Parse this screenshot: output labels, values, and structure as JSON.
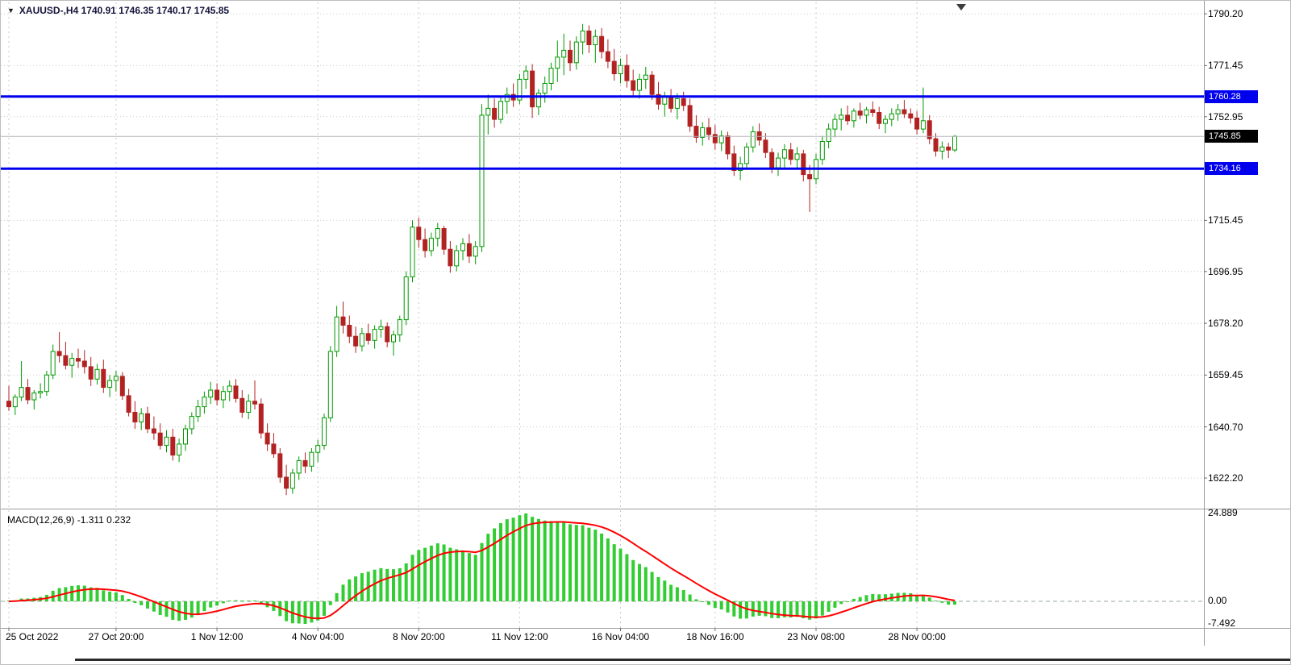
{
  "header": {
    "quick_menu_icon": "▼",
    "symbol_line": "XAUUSD-,H4  1740.91 1746.35 1740.17 1745.85"
  },
  "chart_data": {
    "type": "candlestick",
    "symbol": "XAUUSD-",
    "timeframe": "H4",
    "current_bar": {
      "open": 1740.91,
      "high": 1746.35,
      "low": 1740.17,
      "close": 1745.85
    },
    "price_axis": [
      {
        "price": 1790.2,
        "text": "1790.20"
      },
      {
        "price": 1771.45,
        "text": "1771.45"
      },
      {
        "price": 1752.95,
        "text": "1752.95"
      },
      {
        "price": 1715.45,
        "text": "1715.45"
      },
      {
        "price": 1696.95,
        "text": "1696.95"
      },
      {
        "price": 1678.2,
        "text": "1678.20"
      },
      {
        "price": 1659.45,
        "text": "1659.45"
      },
      {
        "price": 1640.7,
        "text": "1640.70"
      },
      {
        "price": 1622.2,
        "text": "1622.20"
      }
    ],
    "hlines": [
      {
        "price": 1760.28,
        "text": "1760.28"
      },
      {
        "price": 1734.16,
        "text": "1734.16"
      }
    ],
    "bid": {
      "price": 1745.85,
      "text": "1745.85"
    },
    "x_labels": [
      {
        "bar": 0,
        "text": "25 Oct 2022"
      },
      {
        "bar": 17,
        "text": "27 Oct 20:00"
      },
      {
        "bar": 33,
        "text": "1 Nov 12:00"
      },
      {
        "bar": 49,
        "text": "4 Nov 04:00"
      },
      {
        "bar": 65,
        "text": "8 Nov 20:00"
      },
      {
        "bar": 81,
        "text": "11 Nov 12:00"
      },
      {
        "bar": 97,
        "text": "16 Nov 04:00"
      },
      {
        "bar": 112,
        "text": "18 Nov 16:00"
      },
      {
        "bar": 128,
        "text": "23 Nov 08:00"
      },
      {
        "bar": 144,
        "text": "28 Nov 00:00"
      }
    ],
    "candles": [
      [
        1650,
        1655.5,
        1646.5,
        1648
      ],
      [
        1648,
        1652.5,
        1645,
        1651.5
      ],
      [
        1651.5,
        1664.5,
        1650,
        1655
      ],
      [
        1655,
        1658,
        1649,
        1650.5
      ],
      [
        1650.5,
        1654,
        1647,
        1653
      ],
      [
        1653,
        1656.5,
        1651,
        1653.5
      ],
      [
        1653.5,
        1661,
        1652,
        1659.5
      ],
      [
        1659.5,
        1670.5,
        1658,
        1668
      ],
      [
        1668,
        1675,
        1664,
        1666.5
      ],
      [
        1666.5,
        1671.5,
        1661.5,
        1663
      ],
      [
        1663,
        1667.5,
        1658.5,
        1665.5
      ],
      [
        1665.5,
        1669,
        1662,
        1664.5
      ],
      [
        1664.5,
        1668.5,
        1660,
        1662.5
      ],
      [
        1662.5,
        1666,
        1655.5,
        1658
      ],
      [
        1658,
        1663.5,
        1656,
        1661.5
      ],
      [
        1661.5,
        1665,
        1653,
        1655
      ],
      [
        1655,
        1659.5,
        1651.5,
        1657.5
      ],
      [
        1657.5,
        1661,
        1653.5,
        1659
      ],
      [
        1659,
        1660.5,
        1650.5,
        1652
      ],
      [
        1652,
        1654.5,
        1644.5,
        1646
      ],
      [
        1646,
        1650,
        1640,
        1642.5
      ],
      [
        1642.5,
        1647.5,
        1639.5,
        1645.5
      ],
      [
        1645.5,
        1648,
        1638.5,
        1640
      ],
      [
        1640,
        1644.5,
        1636,
        1638.5
      ],
      [
        1638.5,
        1642,
        1632.5,
        1634
      ],
      [
        1634,
        1639.5,
        1631.5,
        1637
      ],
      [
        1637,
        1640,
        1628.5,
        1630.5
      ],
      [
        1630.5,
        1636.5,
        1628,
        1634.5
      ],
      [
        1634.5,
        1641.5,
        1632,
        1640
      ],
      [
        1640,
        1646,
        1638,
        1644.5
      ],
      [
        1644.5,
        1650.5,
        1642.5,
        1648
      ],
      [
        1648,
        1653.5,
        1645.5,
        1651.5
      ],
      [
        1651.5,
        1657,
        1649,
        1654
      ],
      [
        1654,
        1656.5,
        1648.5,
        1650.5
      ],
      [
        1650.5,
        1655.5,
        1647.5,
        1653.5
      ],
      [
        1653.5,
        1657.5,
        1650,
        1655.5
      ],
      [
        1655.5,
        1658,
        1649.5,
        1651
      ],
      [
        1651,
        1654,
        1644,
        1646
      ],
      [
        1646,
        1652.5,
        1643.5,
        1650
      ],
      [
        1650,
        1657.5,
        1647,
        1649
      ],
      [
        1649,
        1651,
        1636.5,
        1638.5
      ],
      [
        1638.5,
        1642,
        1632,
        1634.5
      ],
      [
        1634.5,
        1638.5,
        1629.5,
        1631
      ],
      [
        1631,
        1633,
        1620.5,
        1622.5
      ],
      [
        1622.5,
        1627,
        1616,
        1618.5
      ],
      [
        1618.5,
        1625.5,
        1616.5,
        1624
      ],
      [
        1624,
        1630,
        1621.5,
        1628.5
      ],
      [
        1628.5,
        1631.5,
        1624,
        1626.5
      ],
      [
        1626.5,
        1633,
        1624.5,
        1631.5
      ],
      [
        1631.5,
        1636,
        1628,
        1634
      ],
      [
        1634,
        1645.5,
        1632.5,
        1644
      ],
      [
        1644,
        1670,
        1642.5,
        1668
      ],
      [
        1668,
        1684.5,
        1666,
        1680.5
      ],
      [
        1680.5,
        1686,
        1674.5,
        1677.5
      ],
      [
        1677.5,
        1681,
        1671,
        1673.5
      ],
      [
        1673.5,
        1677,
        1667.5,
        1670
      ],
      [
        1670,
        1676.5,
        1668,
        1674.5
      ],
      [
        1674.5,
        1678,
        1670.5,
        1672
      ],
      [
        1672,
        1677.5,
        1669,
        1676
      ],
      [
        1676,
        1679.5,
        1673,
        1677
      ],
      [
        1677,
        1678.5,
        1669.5,
        1671.5
      ],
      [
        1671.5,
        1675.5,
        1666.5,
        1674
      ],
      [
        1674,
        1681,
        1671.5,
        1679.5
      ],
      [
        1679.5,
        1697,
        1677.5,
        1695
      ],
      [
        1695,
        1715.5,
        1693,
        1713
      ],
      [
        1713,
        1716.5,
        1705.5,
        1708.5
      ],
      [
        1708.5,
        1712.5,
        1702,
        1704.5
      ],
      [
        1704.5,
        1711,
        1702.5,
        1709
      ],
      [
        1709,
        1714.5,
        1706,
        1712.5
      ],
      [
        1712.5,
        1713.5,
        1703,
        1705
      ],
      [
        1705,
        1708,
        1696.5,
        1699
      ],
      [
        1699,
        1706.5,
        1697,
        1704.5
      ],
      [
        1704.5,
        1709,
        1701,
        1707
      ],
      [
        1707,
        1710.5,
        1700,
        1702.5
      ],
      [
        1702.5,
        1708,
        1699.5,
        1706
      ],
      [
        1706,
        1757.5,
        1704,
        1753.5
      ],
      [
        1753.5,
        1761,
        1746.5,
        1756
      ],
      [
        1756,
        1759.5,
        1749,
        1752
      ],
      [
        1752,
        1760.5,
        1750.5,
        1758.5
      ],
      [
        1758.5,
        1763.5,
        1754,
        1761
      ],
      [
        1761,
        1765,
        1756.5,
        1759
      ],
      [
        1759,
        1768.5,
        1757.5,
        1766.5
      ],
      [
        1766.5,
        1771.5,
        1763,
        1769.5
      ],
      [
        1769.5,
        1772,
        1752.5,
        1756.5
      ],
      [
        1756.5,
        1763,
        1753.5,
        1761.5
      ],
      [
        1761.5,
        1767.5,
        1758,
        1765
      ],
      [
        1765,
        1772.5,
        1762.5,
        1770.5
      ],
      [
        1770.5,
        1780.5,
        1765.5,
        1774.5
      ],
      [
        1774.5,
        1783,
        1768,
        1777
      ],
      [
        1777,
        1780.5,
        1769.5,
        1772.5
      ],
      [
        1772.5,
        1782,
        1770,
        1780
      ],
      [
        1780,
        1786.5,
        1775.5,
        1784
      ],
      [
        1784,
        1786,
        1776,
        1779
      ],
      [
        1779,
        1784.5,
        1772.5,
        1782
      ],
      [
        1782,
        1785,
        1774,
        1776.5
      ],
      [
        1776.5,
        1781,
        1770.5,
        1773
      ],
      [
        1773,
        1777.5,
        1766,
        1768.5
      ],
      [
        1768.5,
        1774,
        1765,
        1771.5
      ],
      [
        1771.5,
        1775.5,
        1763.5,
        1766
      ],
      [
        1766,
        1770,
        1760,
        1762.5
      ],
      [
        1762.5,
        1768.5,
        1759.5,
        1766.5
      ],
      [
        1766.5,
        1771,
        1763,
        1768
      ],
      [
        1768,
        1769.5,
        1759,
        1761
      ],
      [
        1761,
        1765.5,
        1755.5,
        1757.5
      ],
      [
        1757.5,
        1762,
        1753,
        1760
      ],
      [
        1760,
        1763,
        1754.5,
        1756
      ],
      [
        1756,
        1761.5,
        1752,
        1759.5
      ],
      [
        1759.5,
        1762,
        1755,
        1757
      ],
      [
        1757,
        1759.5,
        1747.5,
        1749.5
      ],
      [
        1749.5,
        1753.5,
        1743.5,
        1745.5
      ],
      [
        1745.5,
        1751,
        1742.5,
        1749
      ],
      [
        1749,
        1752.5,
        1744.5,
        1746.5
      ],
      [
        1746.5,
        1750,
        1741,
        1743.5
      ],
      [
        1743.5,
        1748,
        1740.5,
        1746
      ],
      [
        1746,
        1747.5,
        1737.5,
        1739.5
      ],
      [
        1739.5,
        1742.5,
        1731.5,
        1733.5
      ],
      [
        1733.5,
        1738.5,
        1730,
        1736
      ],
      [
        1736,
        1743.5,
        1734,
        1742
      ],
      [
        1742,
        1749.5,
        1740,
        1747.5
      ],
      [
        1747.5,
        1750.5,
        1742.5,
        1744.5
      ],
      [
        1744.5,
        1747,
        1738,
        1740
      ],
      [
        1740,
        1741.5,
        1732.5,
        1734.5
      ],
      [
        1734.5,
        1740,
        1731.5,
        1738
      ],
      [
        1738,
        1743,
        1734.5,
        1741
      ],
      [
        1741,
        1743.5,
        1735.5,
        1737.5
      ],
      [
        1737.5,
        1742,
        1734.5,
        1739.5
      ],
      [
        1739.5,
        1741,
        1729.5,
        1732
      ],
      [
        1732,
        1735.5,
        1718.5,
        1730.5
      ],
      [
        1730.5,
        1739.5,
        1728.5,
        1737.5
      ],
      [
        1737.5,
        1746,
        1735.5,
        1744
      ],
      [
        1744,
        1750.5,
        1741.5,
        1748.5
      ],
      [
        1748.5,
        1754,
        1745.5,
        1752
      ],
      [
        1752,
        1756,
        1748,
        1753.5
      ],
      [
        1753.5,
        1757,
        1750,
        1751.5
      ],
      [
        1751.5,
        1756,
        1749,
        1755
      ],
      [
        1755,
        1758,
        1752,
        1753.5
      ],
      [
        1753.5,
        1756.5,
        1750.5,
        1755.5
      ],
      [
        1755.5,
        1758.5,
        1753,
        1754.5
      ],
      [
        1754.5,
        1756.5,
        1748.5,
        1750.5
      ],
      [
        1750.5,
        1753.5,
        1747,
        1752
      ],
      [
        1752,
        1756,
        1749.5,
        1754
      ],
      [
        1754,
        1757.5,
        1751.5,
        1755.5
      ],
      [
        1755.5,
        1759,
        1752.5,
        1754
      ],
      [
        1754,
        1756,
        1750.5,
        1752.5
      ],
      [
        1752.5,
        1755,
        1746.5,
        1748.5
      ],
      [
        1748.5,
        1763.5,
        1747,
        1751.5
      ],
      [
        1751.5,
        1753.5,
        1743,
        1745
      ],
      [
        1745,
        1747,
        1738.5,
        1740.5
      ],
      [
        1740.5,
        1744,
        1737.5,
        1742
      ],
      [
        1742,
        1743.5,
        1738,
        1740.9
      ],
      [
        1740.91,
        1746.35,
        1740.17,
        1745.85
      ]
    ],
    "macd": {
      "title": "MACD(12,26,9) -1.311 0.232",
      "fast": 12,
      "slow": 26,
      "signal_period": 9,
      "main_value": -1.311,
      "signal_value": 0.232,
      "axis_labels": [
        "24.889",
        "0.00",
        "-7.492"
      ]
    }
  },
  "colors": {
    "bull": "#009a00",
    "bull_fill": "#ffffff",
    "bear": "#b22222",
    "hline": "#0000ee",
    "bid_line": "#b4b4bc",
    "bid_tag_bg": "#000000",
    "histogram": "#32cd32",
    "signal_line": "#ff0000",
    "grid": "#c9c9c9",
    "macd_zero": "#9aa89a",
    "divider": "#9c9c9c",
    "axis_tick": "#707070",
    "shift_marker": "#3c3c3c"
  }
}
